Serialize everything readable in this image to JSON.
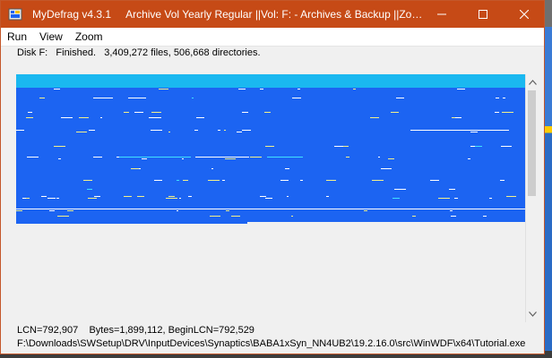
{
  "window": {
    "app_title": "MyDefrag v4.3.1",
    "script_title": "Archive Vol Yearly Regular ||Vol: F: - Archives & Backup ||Zone:..."
  },
  "menu": [
    "Run",
    "View",
    "Zoom"
  ],
  "status": {
    "disk": "Disk F:",
    "state": "Finished.",
    "summary": "3,409,272 files, 506,668 directories."
  },
  "info": {
    "lcn": "LCN=792,907",
    "bytes": "Bytes=1,899,112, BeginLCN=792,529",
    "path": "F:\\Downloads\\SWSetup\\DRV\\InputDevices\\Synaptics\\BABA1xSyn_NN4UB2\\19.2.16.0\\src\\WinWDF\\x64\\Tutorial.exe"
  },
  "colors": {
    "titlebar": "#c64a16",
    "map_used": "#1c64f2",
    "map_top": "#1ab8f0",
    "map_free": "#f0f0f0",
    "mark_white": "#ffffff",
    "mark_yellow": "#f3f08a",
    "mark_cyan": "#3fe0ff"
  },
  "icons": {
    "app": "mydefrag-app-icon",
    "minimize": "minimize-icon",
    "maximize": "maximize-icon",
    "close": "close-icon",
    "scroll_up": "chevron-up-icon",
    "scroll_down": "chevron-down-icon"
  }
}
